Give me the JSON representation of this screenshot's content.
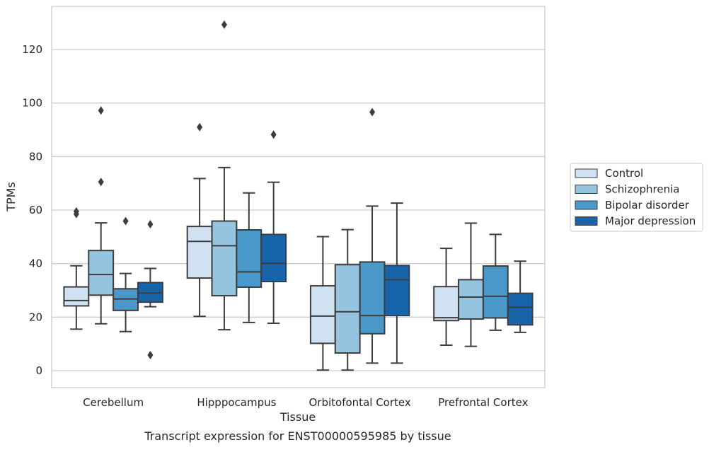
{
  "chart_data": {
    "type": "box",
    "title": "",
    "caption": "Transcript expression for ENST00000595985 by tissue",
    "xlabel": "Tissue",
    "ylabel": "TPMs",
    "ylim": [
      -6,
      136
    ],
    "yticks": [
      0,
      20,
      40,
      60,
      80,
      100,
      120
    ],
    "grid": "horizontal",
    "legend_position": "right",
    "categories": [
      "Cerebellum",
      "Hipppocampus",
      "Orbitofontal Cortex",
      "Prefrontal Cortex"
    ],
    "series": [
      {
        "name": "Control",
        "color": "#d0e1f2",
        "boxes": [
          {
            "whislo": 15.5,
            "q1": 24.2,
            "med": 26.2,
            "q3": 31.3,
            "whishi": 39.2,
            "fliers": [
              58.5,
              59.5
            ]
          },
          {
            "whislo": 20.3,
            "q1": 34.6,
            "med": 48.3,
            "q3": 53.9,
            "whishi": 71.8,
            "fliers": [
              91.0
            ]
          },
          {
            "whislo": 0.2,
            "q1": 10.2,
            "med": 20.4,
            "q3": 31.7,
            "whishi": 50.1,
            "fliers": []
          },
          {
            "whislo": 9.5,
            "q1": 18.7,
            "med": 19.8,
            "q3": 31.4,
            "whishi": 45.7,
            "fliers": []
          }
        ]
      },
      {
        "name": "Schizophrenia",
        "color": "#94c4df",
        "boxes": [
          {
            "whislo": 17.5,
            "q1": 28.2,
            "med": 35.9,
            "q3": 44.9,
            "whishi": 55.2,
            "fliers": [
              70.5,
              97.2
            ]
          },
          {
            "whislo": 15.3,
            "q1": 28.0,
            "med": 46.7,
            "q3": 55.9,
            "whishi": 75.9,
            "fliers": [
              129.3
            ]
          },
          {
            "whislo": 0.2,
            "q1": 6.6,
            "med": 22.0,
            "q3": 39.6,
            "whishi": 52.7,
            "fliers": []
          },
          {
            "whislo": 9.1,
            "q1": 19.3,
            "med": 27.5,
            "q3": 34.0,
            "whishi": 55.1,
            "fliers": []
          }
        ]
      },
      {
        "name": "Bipolar disorder",
        "color": "#4a98c9",
        "boxes": [
          {
            "whislo": 14.6,
            "q1": 22.5,
            "med": 26.8,
            "q3": 30.6,
            "whishi": 36.3,
            "fliers": [
              55.9
            ]
          },
          {
            "whislo": 18.0,
            "q1": 31.2,
            "med": 36.9,
            "q3": 52.6,
            "whishi": 66.4,
            "fliers": []
          },
          {
            "whislo": 2.8,
            "q1": 13.8,
            "med": 20.6,
            "q3": 40.6,
            "whishi": 61.5,
            "fliers": [
              96.6
            ]
          },
          {
            "whislo": 15.1,
            "q1": 19.7,
            "med": 27.8,
            "q3": 39.1,
            "whishi": 50.9,
            "fliers": []
          }
        ]
      },
      {
        "name": "Major depression",
        "color": "#1764ab",
        "boxes": [
          {
            "whislo": 23.9,
            "q1": 25.6,
            "med": 29.0,
            "q3": 32.9,
            "whishi": 38.2,
            "fliers": [
              5.8,
              54.7
            ]
          },
          {
            "whislo": 17.7,
            "q1": 33.3,
            "med": 40.1,
            "q3": 50.9,
            "whishi": 70.4,
            "fliers": [
              88.2
            ]
          },
          {
            "whislo": 2.8,
            "q1": 20.6,
            "med": 34.0,
            "q3": 39.3,
            "whishi": 62.6,
            "fliers": []
          },
          {
            "whislo": 14.3,
            "q1": 17.1,
            "med": 23.7,
            "q3": 28.9,
            "whishi": 40.9,
            "fliers": []
          }
        ]
      }
    ]
  }
}
